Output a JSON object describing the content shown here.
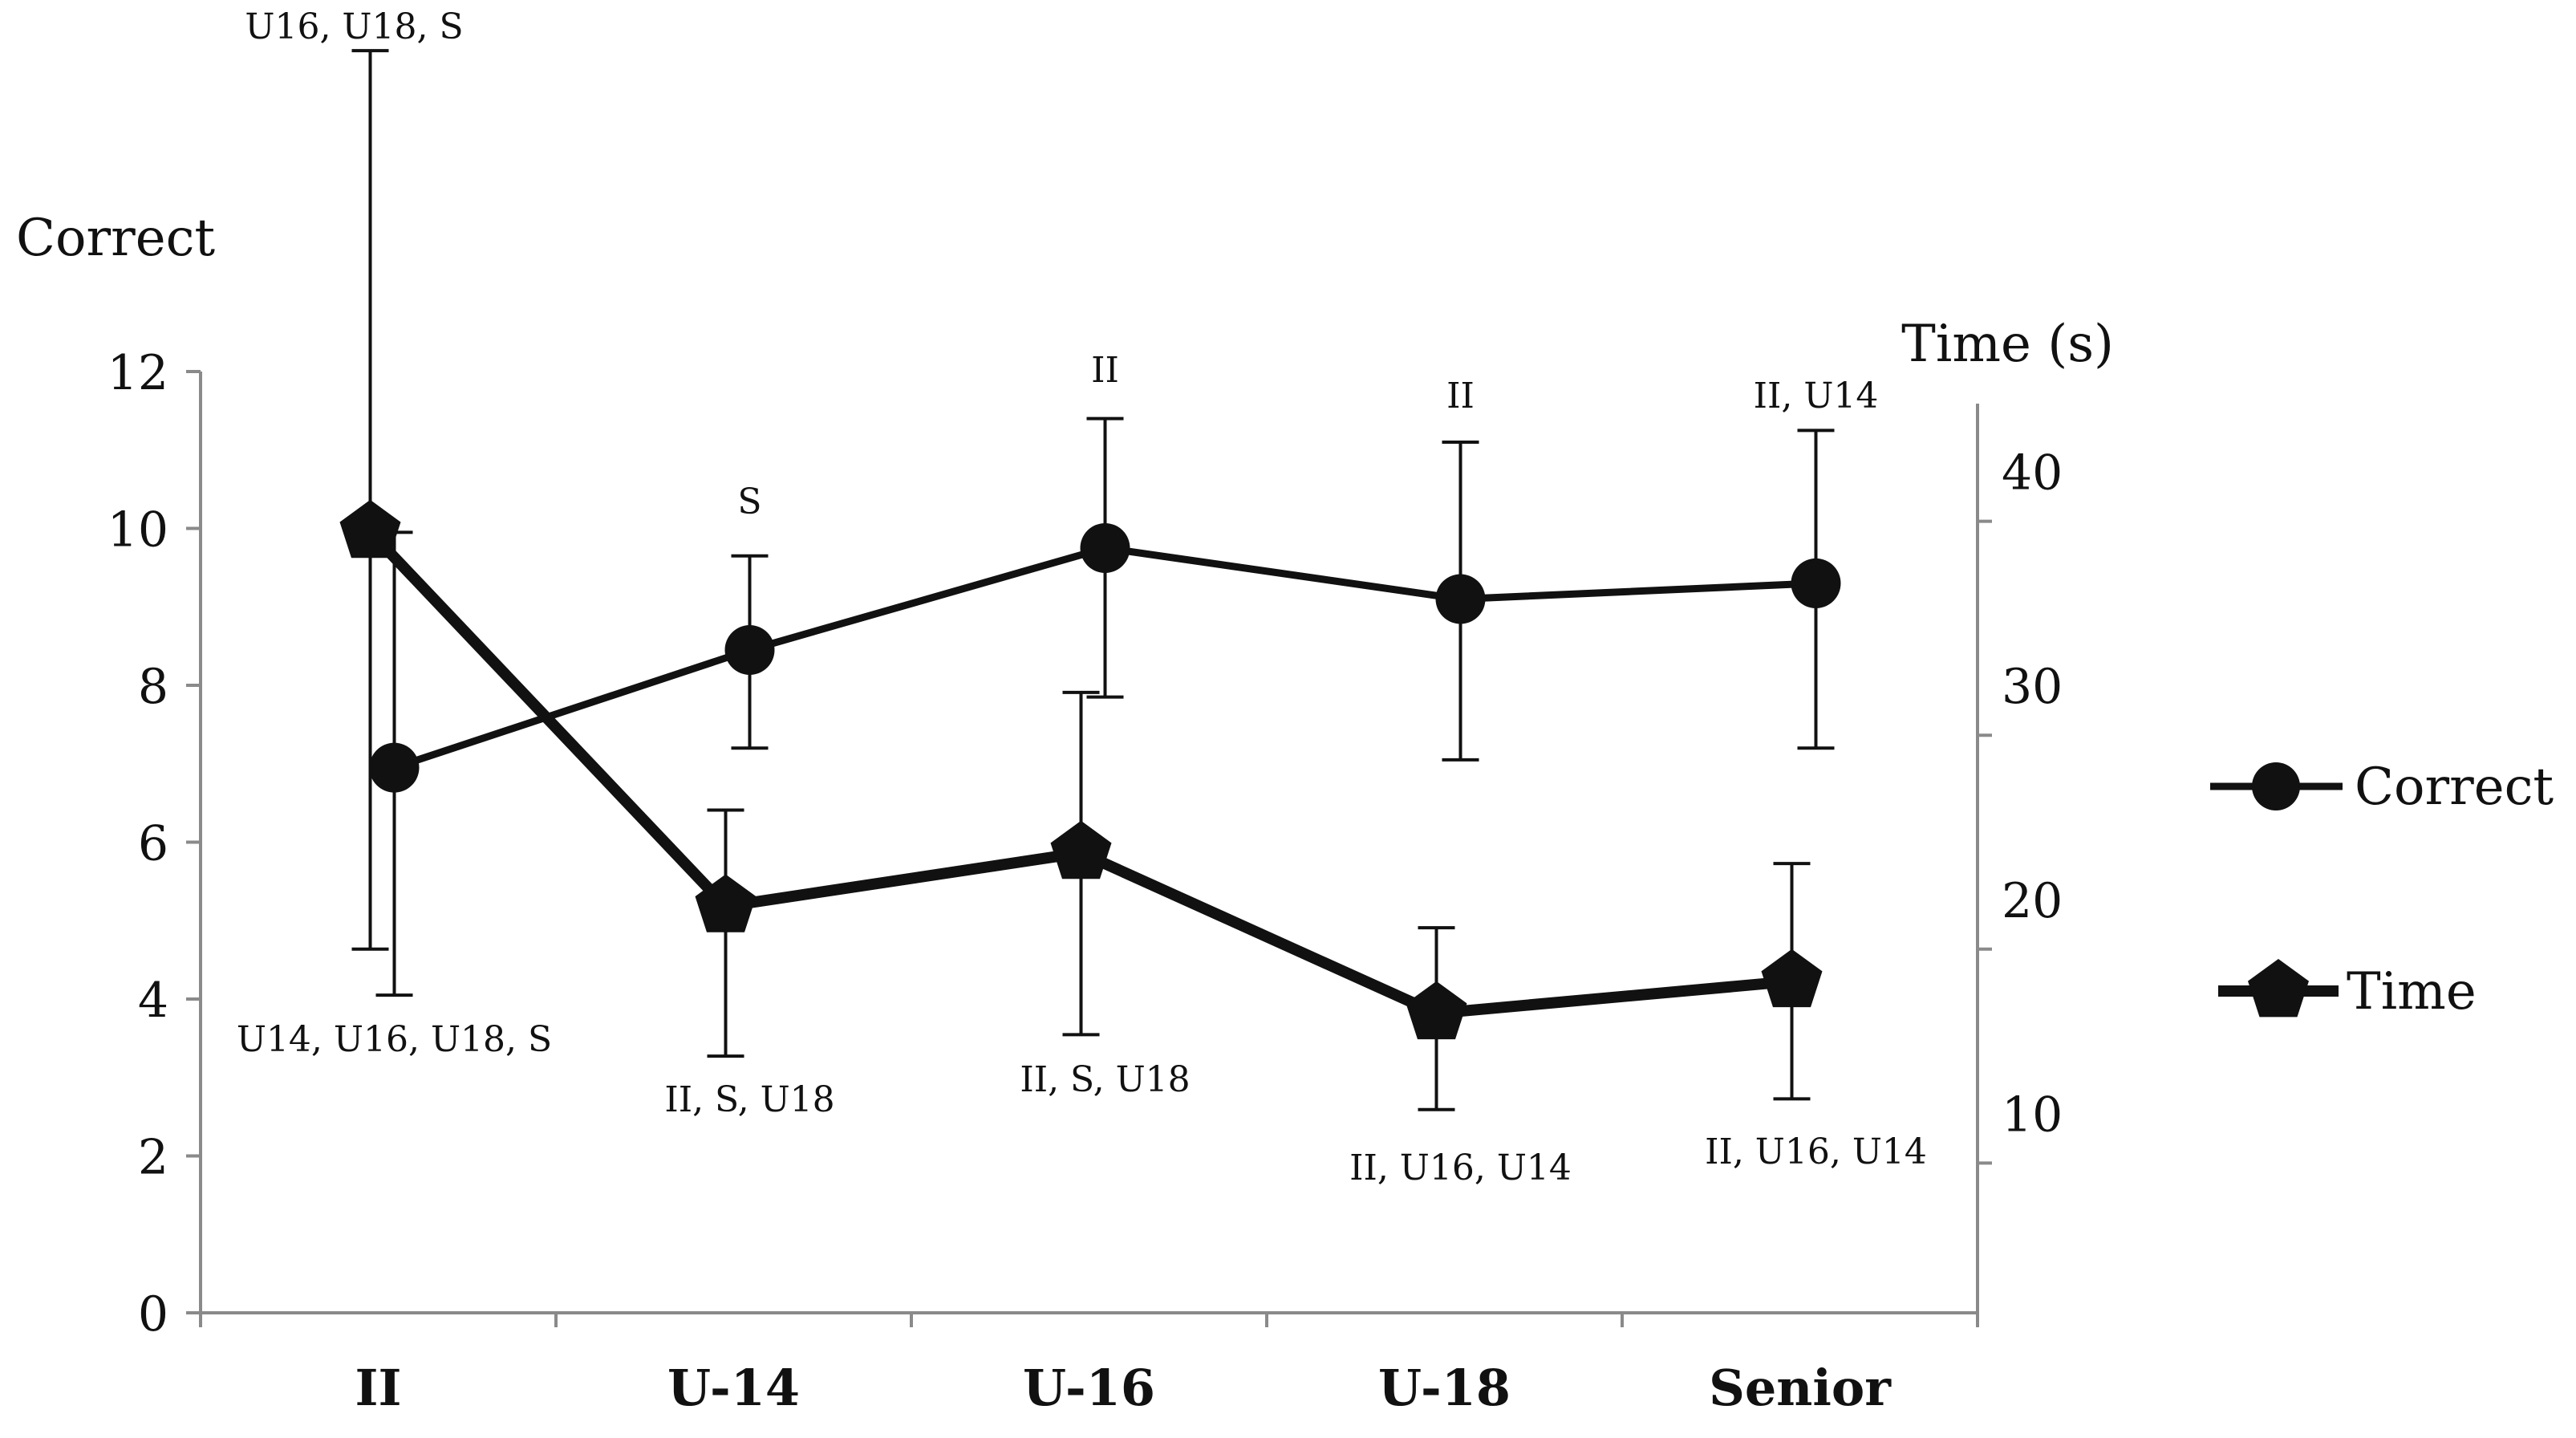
{
  "chart_data": {
    "type": "line",
    "categories": [
      "II",
      "U-14",
      "U-16",
      "U-18",
      "Senior"
    ],
    "left_axis": {
      "title": "Correct",
      "ylim": [
        0,
        12
      ],
      "ticks": [
        "0",
        "2",
        "4",
        "6",
        "8",
        "10",
        "12"
      ]
    },
    "right_axis": {
      "title": "Time (s)",
      "ylim": [
        3,
        47
      ],
      "ticks": [
        "10",
        "20",
        "30",
        "40"
      ]
    },
    "series": [
      {
        "name": "Correct",
        "axis": "left",
        "marker": "circle",
        "values": [
          6.95,
          8.45,
          9.75,
          9.1,
          9.3
        ],
        "error_lower": [
          4.05,
          7.2,
          7.85,
          7.05,
          7.2
        ],
        "error_upper": [
          9.95,
          9.65,
          11.4,
          11.1,
          11.25
        ],
        "annotations": [
          "U16, U18, S",
          "S",
          "II",
          "II",
          "II, U14"
        ]
      },
      {
        "name": "Time",
        "axis": "right",
        "marker": "pentagon",
        "values": [
          39.5,
          22,
          24.5,
          17,
          18.5
        ],
        "error_lower": [
          20,
          15,
          16,
          12.5,
          13
        ],
        "error_upper": [
          62,
          26.5,
          32,
          21,
          24
        ],
        "annotations": [
          "U14, U16, U18, S",
          "II, S, U18",
          "II, S, U18",
          "II, U16, U14",
          "II, U16, U14"
        ]
      }
    ],
    "legend": {
      "placement": "right",
      "entries": [
        "Correct",
        "Time"
      ]
    }
  }
}
